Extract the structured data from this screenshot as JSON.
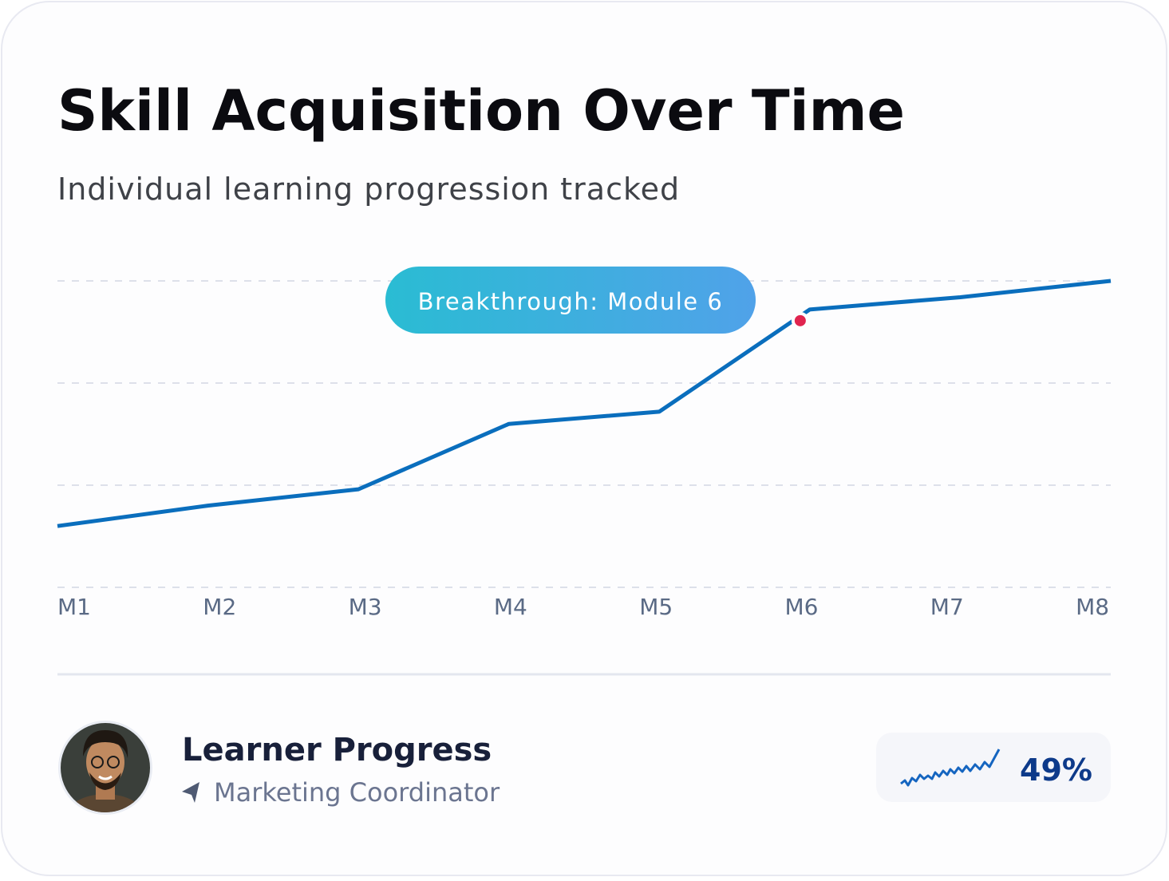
{
  "chart_data": {
    "type": "line",
    "title": "Skill Acquisition Over Time",
    "subtitle": "Individual learning progression tracked",
    "categories": [
      "M1",
      "M2",
      "M3",
      "M4",
      "M5",
      "M6",
      "M7",
      "M8"
    ],
    "values": [
      15,
      20,
      24,
      40,
      43,
      68,
      71,
      75
    ],
    "color": "#0a6ebd",
    "ylim": [
      0,
      75
    ],
    "yticks": [
      0,
      25,
      50,
      75
    ],
    "grid": true,
    "annotation": {
      "text": "Breakthrough: Module 6",
      "category_index": 5,
      "color": "#e0244f"
    }
  },
  "footer": {
    "title": "Learner Progress",
    "role": "Marketing Coordinator",
    "progress": "49%"
  }
}
